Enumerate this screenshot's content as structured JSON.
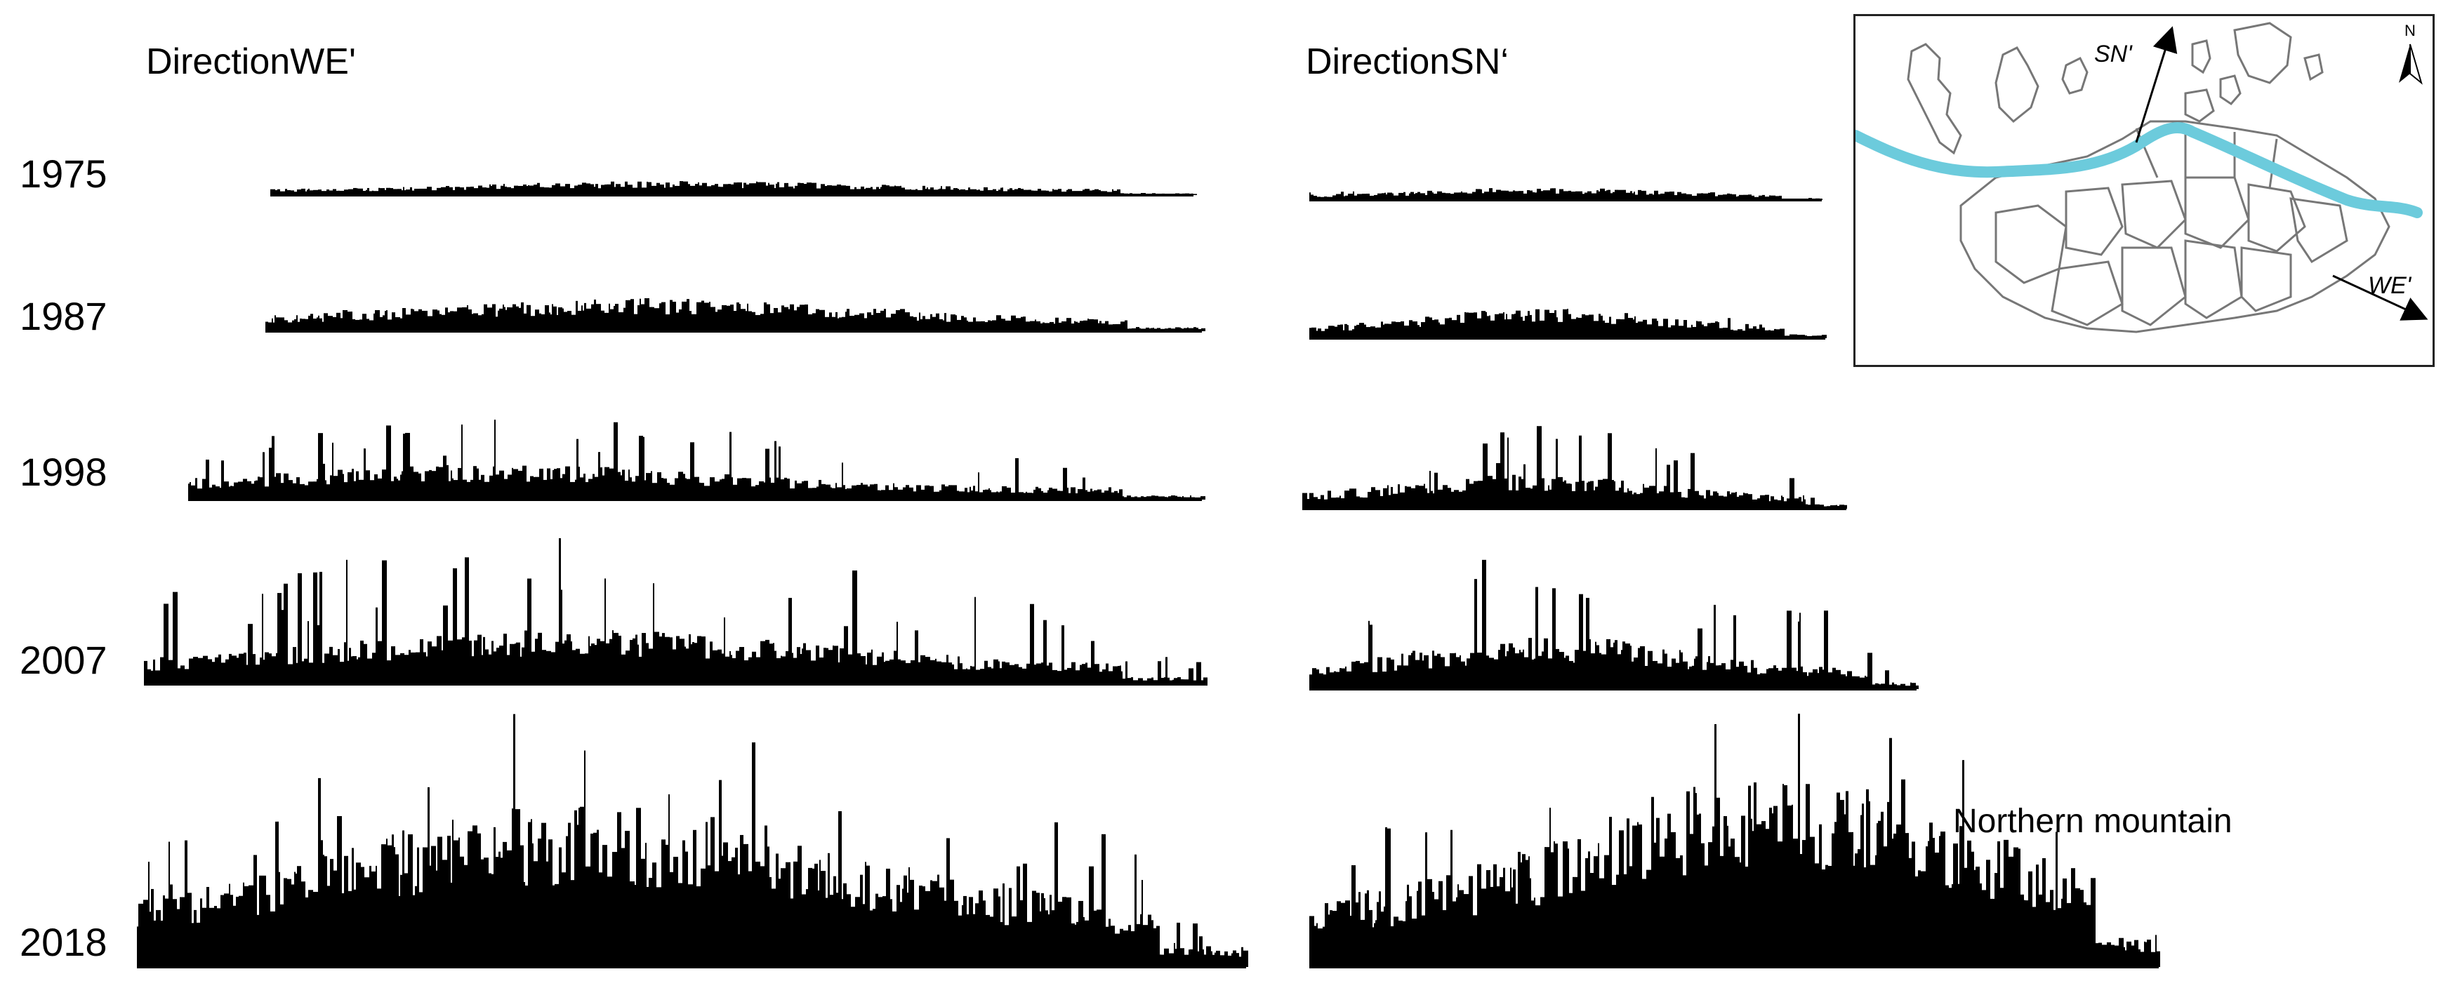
{
  "panel_titles": {
    "we": "DirectionWE'",
    "sn": "DirectionSN‘"
  },
  "years": [
    "1975",
    "1987",
    "1998",
    "2007",
    "2018"
  ],
  "annotation": "Northern mountain",
  "map": {
    "labels": {
      "sn": "SN'",
      "we": "WE'",
      "north": "N"
    },
    "river_color": "#6ccbdc"
  },
  "chart_data": {
    "type": "bar",
    "description_free": true,
    "fill_color": "#000000",
    "columns": [
      {
        "key": "we",
        "title": "DirectionWE'"
      },
      {
        "key": "sn",
        "title": "DirectionSN‘"
      }
    ],
    "rows": [
      "1975",
      "1987",
      "1998",
      "2007",
      "2018"
    ],
    "profiles": {
      "we": {
        "1975": {
          "base": 0.25,
          "peak": 0.45,
          "spikes": 0.3,
          "hump": 0.45
        },
        "1987": {
          "base": 0.35,
          "peak": 0.6,
          "spikes": 0.45,
          "hump": 0.4
        },
        "1998": {
          "base": 0.2,
          "peak": 0.9,
          "spikes": 0.8,
          "hump": 0.3
        },
        "2007": {
          "base": 0.2,
          "peak": 1.0,
          "spikes": 0.8,
          "hump": 0.4
        },
        "2018": {
          "base": 0.35,
          "peak": 1.0,
          "spikes": 0.85,
          "hump": 0.4
        }
      },
      "sn": {
        "1975": {
          "base": 0.2,
          "peak": 0.45,
          "spikes": 0.3,
          "hump": 0.45
        },
        "1987": {
          "base": 0.3,
          "peak": 0.6,
          "spikes": 0.5,
          "hump": 0.45
        },
        "1998": {
          "base": 0.2,
          "peak": 0.9,
          "spikes": 0.7,
          "hump": 0.4
        },
        "2007": {
          "base": 0.2,
          "peak": 1.0,
          "spikes": 0.8,
          "hump": 0.4
        },
        "2018": {
          "base": 0.4,
          "peak": 1.0,
          "spikes": 0.85,
          "hump": 0.55
        }
      }
    }
  }
}
